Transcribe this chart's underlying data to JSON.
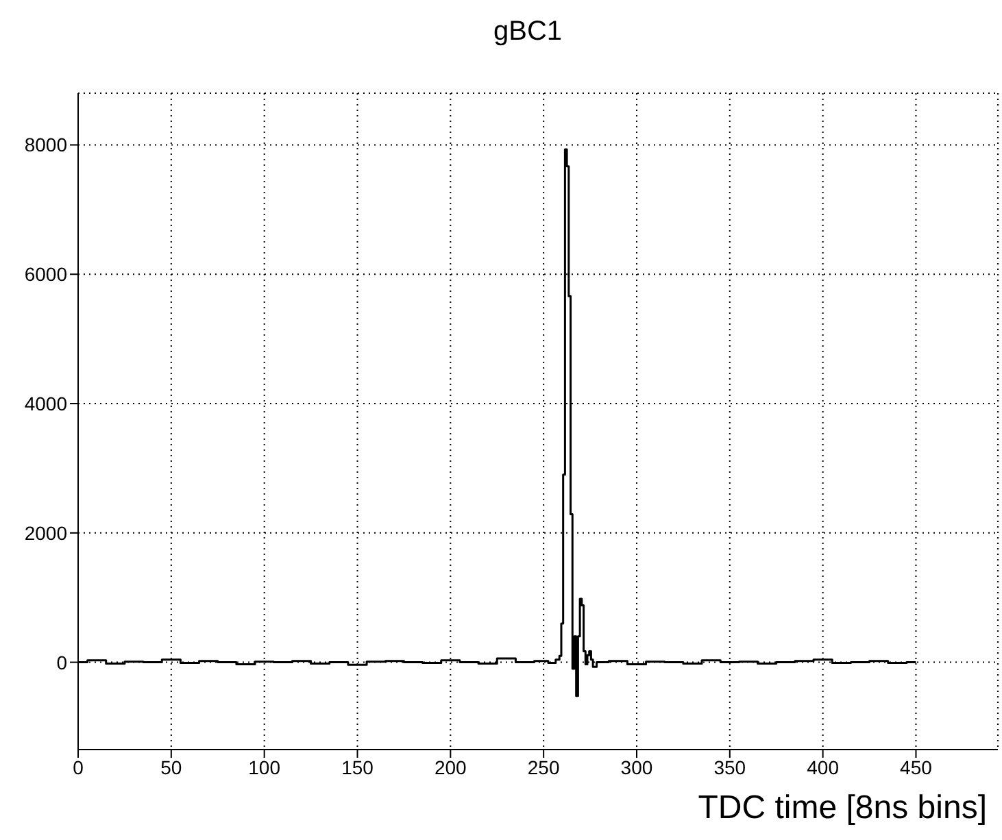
{
  "chart_data": {
    "type": "step",
    "title": "gBC1",
    "xlabel": "TDC time [8ns bins]",
    "x": [
      0,
      10,
      20,
      30,
      40,
      50,
      60,
      70,
      80,
      90,
      100,
      110,
      120,
      130,
      140,
      150,
      160,
      170,
      180,
      190,
      200,
      210,
      220,
      230,
      240,
      250,
      255,
      258,
      259,
      260,
      261,
      262,
      263,
      264,
      265,
      266,
      267,
      268,
      269,
      270,
      271,
      272,
      273,
      274,
      275,
      276,
      277,
      280,
      290,
      300,
      310,
      320,
      330,
      340,
      350,
      360,
      370,
      380,
      390,
      400,
      410,
      420,
      430,
      440,
      450
    ],
    "series": [
      {
        "color": "#000000",
        "values": [
          0,
          30,
          -20,
          10,
          0,
          40,
          -10,
          20,
          0,
          -30,
          10,
          0,
          20,
          -20,
          0,
          -40,
          10,
          20,
          0,
          -10,
          30,
          0,
          -20,
          60,
          0,
          20,
          -10,
          40,
          100,
          600,
          2900,
          7930,
          7670,
          5660,
          2290,
          -100,
          400,
          -520,
          400,
          980,
          880,
          170,
          -30,
          110,
          170,
          40,
          -70,
          0,
          20,
          -30,
          10,
          0,
          -20,
          30,
          0,
          10,
          -20,
          0,
          20,
          40,
          -10,
          0,
          20,
          -10,
          0
        ]
      }
    ],
    "xlim": [
      0,
      494
    ],
    "xticks": [
      0,
      50,
      100,
      150,
      200,
      250,
      300,
      350,
      400,
      450
    ],
    "ylim": [
      -1350,
      8800
    ],
    "yticks": [
      0,
      2000,
      4000,
      6000,
      8000
    ],
    "grid": true,
    "marker": "none",
    "line_style": "solid"
  }
}
